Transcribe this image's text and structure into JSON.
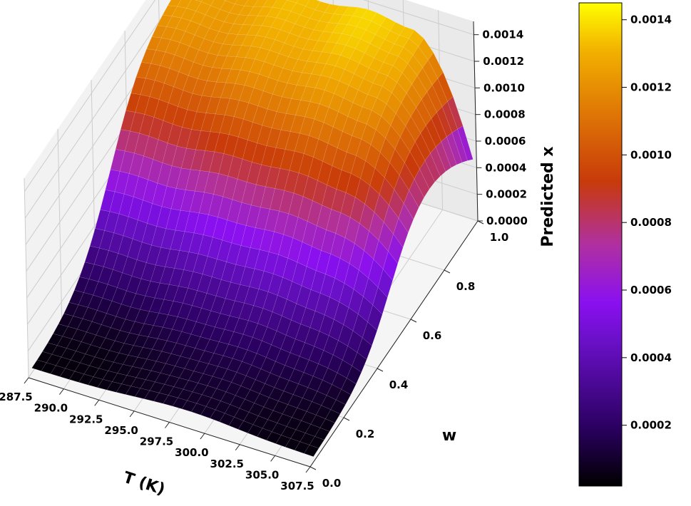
{
  "chart_data": {
    "type": "surface3d",
    "colormap": "gnuplot",
    "x_axis": {
      "label": "T (K)",
      "range": [
        287.5,
        307.5
      ],
      "ticks": [
        "287.5",
        "290.0",
        "292.5",
        "295.0",
        "297.5",
        "300.0",
        "302.5",
        "305.0",
        "307.5"
      ]
    },
    "y_axis": {
      "label": "w",
      "range": [
        0.0,
        1.0
      ],
      "ticks": [
        "0.0",
        "0.2",
        "0.4",
        "0.6",
        "0.8",
        "1.0"
      ]
    },
    "z_axis": {
      "label": "Predicted x",
      "range": [
        0.0,
        0.0015
      ],
      "ticks": [
        "0.0000",
        "0.0002",
        "0.0004",
        "0.0006",
        "0.0008",
        "0.0010",
        "0.0012",
        "0.0014"
      ]
    },
    "colorbar": {
      "range": [
        2e-05,
        0.00145
      ],
      "ticks": [
        "0.0002",
        "0.0004",
        "0.0006",
        "0.0008",
        "0.0010",
        "0.0012",
        "0.0014"
      ]
    },
    "grid": true,
    "surface_shape": "Predicted x rises steeply with w (near zero at low w, plateau ~0.0013-0.0014 at high w); weak decrease toward T = 307.5 K at high w (~0.0005)",
    "surface_samples": [
      {
        "T": 288.0,
        "w": 0.05,
        "x": 3e-05
      },
      {
        "T": 298.0,
        "w": 0.05,
        "x": 2e-05
      },
      {
        "T": 307.0,
        "w": 0.05,
        "x": 4e-05
      },
      {
        "T": 288.0,
        "w": 0.5,
        "x": 0.0004
      },
      {
        "T": 298.0,
        "w": 0.5,
        "x": 0.00045
      },
      {
        "T": 307.0,
        "w": 0.5,
        "x": 0.00042
      },
      {
        "T": 288.0,
        "w": 0.95,
        "x": 0.00125
      },
      {
        "T": 298.0,
        "w": 0.95,
        "x": 0.00142
      },
      {
        "T": 303.0,
        "w": 0.95,
        "x": 0.00138
      },
      {
        "T": 307.0,
        "w": 0.95,
        "x": 0.0005
      }
    ]
  }
}
